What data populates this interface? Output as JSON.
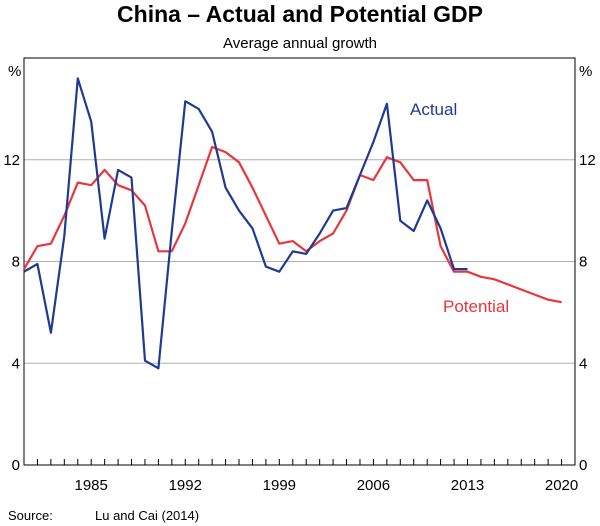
{
  "chart_data": {
    "type": "line",
    "title": "China  – Actual and Potential GDP",
    "subtitle": "Average annual growth",
    "ylabel_left": "%",
    "ylabel_right": "%",
    "ylim": [
      0,
      16
    ],
    "xlim": [
      1980,
      2021
    ],
    "y_ticks": [
      0,
      4,
      8,
      12
    ],
    "y_tick_labels": [
      "0",
      "4",
      "8",
      "12"
    ],
    "x_ticks": [
      1985,
      1992,
      1999,
      2006,
      2013,
      2020
    ],
    "x_tick_labels": [
      "1985",
      "1992",
      "1999",
      "2006",
      "2013",
      "2020"
    ],
    "grid": true,
    "source_label": "Source:",
    "source_text": "Lu and Cai (2014)",
    "colors": {
      "actual": "#1f3a93",
      "potential": "#e8363c",
      "grid": "#b0b0b0",
      "axis": "#000000"
    },
    "series": [
      {
        "name": "Actual",
        "key": "actual",
        "label": "Actual",
        "x": [
          1980,
          1981,
          1982,
          1983,
          1984,
          1985,
          1986,
          1987,
          1988,
          1989,
          1990,
          1991,
          1992,
          1993,
          1994,
          1995,
          1996,
          1997,
          1998,
          1999,
          2000,
          2001,
          2002,
          2003,
          2004,
          2005,
          2006,
          2007,
          2008,
          2009,
          2010,
          2011,
          2012,
          2013
        ],
        "values": [
          7.6,
          7.9,
          5.2,
          9.0,
          15.2,
          13.5,
          8.9,
          11.6,
          11.3,
          4.1,
          3.8,
          9.2,
          14.3,
          14.0,
          13.1,
          10.9,
          10.0,
          9.3,
          7.8,
          7.6,
          8.4,
          8.3,
          9.1,
          10.0,
          10.1,
          11.4,
          12.7,
          14.2,
          9.6,
          9.2,
          10.4,
          9.3,
          7.7,
          7.7
        ]
      },
      {
        "name": "Potential",
        "key": "potential",
        "label": "Potential",
        "x": [
          1980,
          1981,
          1982,
          1983,
          1984,
          1985,
          1986,
          1987,
          1988,
          1989,
          1990,
          1991,
          1992,
          1993,
          1994,
          1995,
          1996,
          1997,
          1998,
          1999,
          2000,
          2001,
          2002,
          2003,
          2004,
          2005,
          2006,
          2007,
          2008,
          2009,
          2010,
          2011,
          2012,
          2013,
          2014,
          2015,
          2016,
          2017,
          2018,
          2019,
          2020
        ],
        "values": [
          7.7,
          8.6,
          8.7,
          9.8,
          11.1,
          11.0,
          11.6,
          11.0,
          10.8,
          10.2,
          8.4,
          8.4,
          9.5,
          11.0,
          12.5,
          12.3,
          11.9,
          10.9,
          9.8,
          8.7,
          8.8,
          8.4,
          8.8,
          9.1,
          10.0,
          11.4,
          11.2,
          12.1,
          11.9,
          11.2,
          11.2,
          8.6,
          7.6,
          7.6,
          7.4,
          7.3,
          7.1,
          6.9,
          6.7,
          6.5,
          6.4
        ]
      }
    ]
  }
}
